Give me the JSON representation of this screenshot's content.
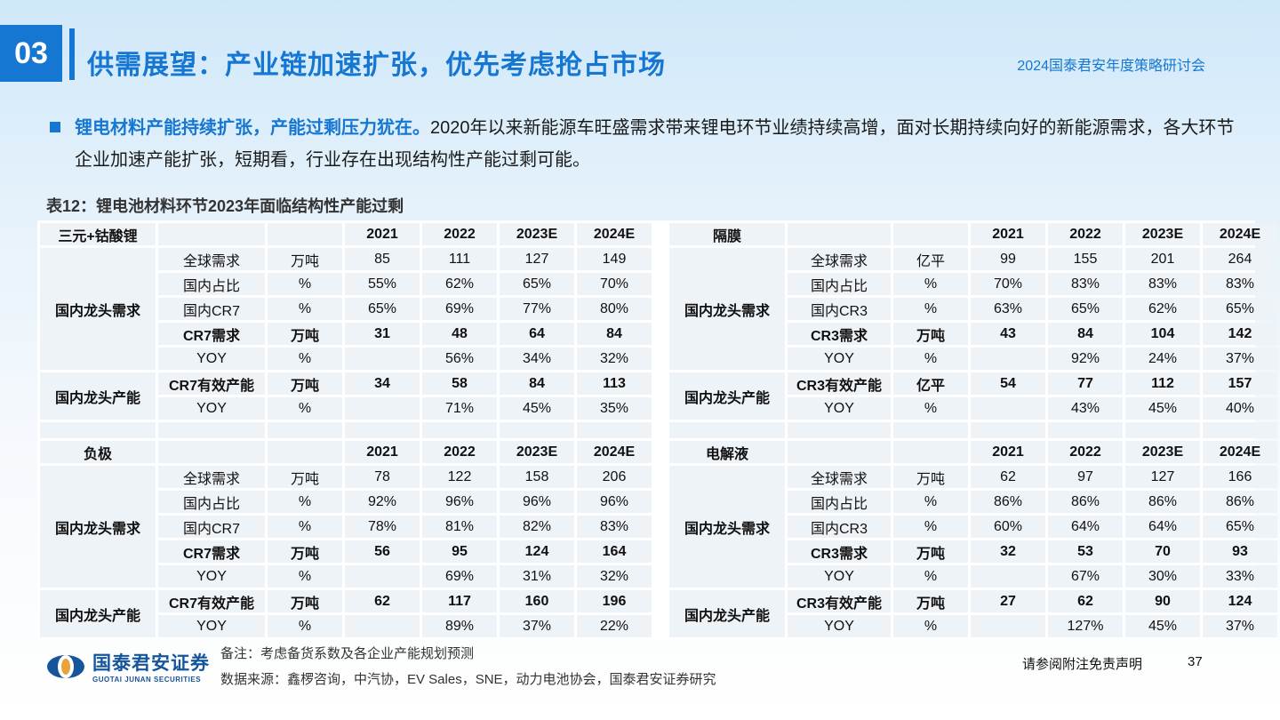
{
  "header": {
    "section_number": "03",
    "title": "供需展望：产业链加速扩张，优先考虑抢占市场",
    "event": "2024国泰君安年度策略研讨会"
  },
  "bullet": {
    "highlight": "锂电材料产能持续扩张，产能过剩压力犹在。",
    "text": "2020年以来新能源车旺盛需求带来锂电环节业绩持续高增，面对长期持续向好的新能源需求，各大环节企业加速产能扩张，短期看，行业存在出现结构性产能过剩可能。"
  },
  "table": {
    "caption": "表12：锂电池材料环节2023年面临结构性产能过剩",
    "years": [
      "2021",
      "2022",
      "2023E",
      "2024E"
    ],
    "row_labels": {
      "demand": "国内龙头需求",
      "capacity": "国内龙头产能"
    },
    "quadrants": {
      "cathode": {
        "header": "三元+钴酸锂",
        "rows": [
          {
            "item": "全球需求",
            "unit": "万吨",
            "vals": [
              "85",
              "111",
              "127",
              "149"
            ]
          },
          {
            "item": "国内占比",
            "unit": "%",
            "vals": [
              "55%",
              "62%",
              "65%",
              "70%"
            ]
          },
          {
            "item": "国内CR7",
            "unit": "%",
            "vals": [
              "65%",
              "69%",
              "77%",
              "80%"
            ]
          },
          {
            "item": "CR7需求",
            "unit": "万吨",
            "vals": [
              "31",
              "48",
              "64",
              "84"
            ]
          },
          {
            "item": "YOY",
            "unit": "%",
            "vals": [
              "",
              "56%",
              "34%",
              "32%"
            ]
          },
          {
            "item": "CR7有效产能",
            "unit": "万吨",
            "vals": [
              "34",
              "58",
              "84",
              "113"
            ]
          },
          {
            "item": "YOY",
            "unit": "%",
            "vals": [
              "",
              "71%",
              "45%",
              "35%"
            ]
          }
        ]
      },
      "separator": {
        "header": "隔膜",
        "rows": [
          {
            "item": "全球需求",
            "unit": "亿平",
            "vals": [
              "99",
              "155",
              "201",
              "264"
            ]
          },
          {
            "item": "国内占比",
            "unit": "%",
            "vals": [
              "70%",
              "83%",
              "83%",
              "83%"
            ]
          },
          {
            "item": "国内CR3",
            "unit": "%",
            "vals": [
              "63%",
              "65%",
              "62%",
              "65%"
            ]
          },
          {
            "item": "CR3需求",
            "unit": "万吨",
            "vals": [
              "43",
              "84",
              "104",
              "142"
            ]
          },
          {
            "item": "YOY",
            "unit": "%",
            "vals": [
              "",
              "92%",
              "24%",
              "37%"
            ]
          },
          {
            "item": "CR3有效产能",
            "unit": "亿平",
            "vals": [
              "54",
              "77",
              "112",
              "157"
            ]
          },
          {
            "item": "YOY",
            "unit": "%",
            "vals": [
              "",
              "43%",
              "45%",
              "40%"
            ]
          }
        ]
      },
      "anode": {
        "header": "负极",
        "rows": [
          {
            "item": "全球需求",
            "unit": "万吨",
            "vals": [
              "78",
              "122",
              "158",
              "206"
            ]
          },
          {
            "item": "国内占比",
            "unit": "%",
            "vals": [
              "92%",
              "96%",
              "96%",
              "96%"
            ]
          },
          {
            "item": "国内CR7",
            "unit": "%",
            "vals": [
              "78%",
              "81%",
              "82%",
              "83%"
            ]
          },
          {
            "item": "CR7需求",
            "unit": "万吨",
            "vals": [
              "56",
              "95",
              "124",
              "164"
            ]
          },
          {
            "item": "YOY",
            "unit": "%",
            "vals": [
              "",
              "69%",
              "31%",
              "32%"
            ]
          },
          {
            "item": "CR7有效产能",
            "unit": "万吨",
            "vals": [
              "62",
              "117",
              "160",
              "196"
            ]
          },
          {
            "item": "YOY",
            "unit": "%",
            "vals": [
              "",
              "89%",
              "37%",
              "22%"
            ]
          }
        ]
      },
      "electrolyte": {
        "header": "电解液",
        "rows": [
          {
            "item": "全球需求",
            "unit": "万吨",
            "vals": [
              "62",
              "97",
              "127",
              "166"
            ]
          },
          {
            "item": "国内占比",
            "unit": "%",
            "vals": [
              "86%",
              "86%",
              "86%",
              "86%"
            ]
          },
          {
            "item": "国内CR3",
            "unit": "%",
            "vals": [
              "60%",
              "64%",
              "64%",
              "65%"
            ]
          },
          {
            "item": "CR3需求",
            "unit": "万吨",
            "vals": [
              "32",
              "53",
              "70",
              "93"
            ]
          },
          {
            "item": "YOY",
            "unit": "%",
            "vals": [
              "",
              "67%",
              "30%",
              "33%"
            ]
          },
          {
            "item": "CR3有效产能",
            "unit": "万吨",
            "vals": [
              "27",
              "62",
              "90",
              "124"
            ]
          },
          {
            "item": "YOY",
            "unit": "%",
            "vals": [
              "",
              "127%",
              "45%",
              "37%"
            ]
          }
        ]
      }
    }
  },
  "footer": {
    "logo_cn": "国泰君安证券",
    "logo_en": "GUOTAI JUNAN SECURITIES",
    "note": "备注：考虑备货系数及各企业产能规划预测",
    "source": "数据来源：鑫椤咨询，中汽协，EV Sales，SNE，动力电池协会，国泰君安证券研究",
    "disclaimer": "请参阅附注免责声明",
    "page": "37"
  },
  "colors": {
    "accent": "#1677d2",
    "cell_bg": "#eef3f8",
    "logo": "#14559c"
  }
}
